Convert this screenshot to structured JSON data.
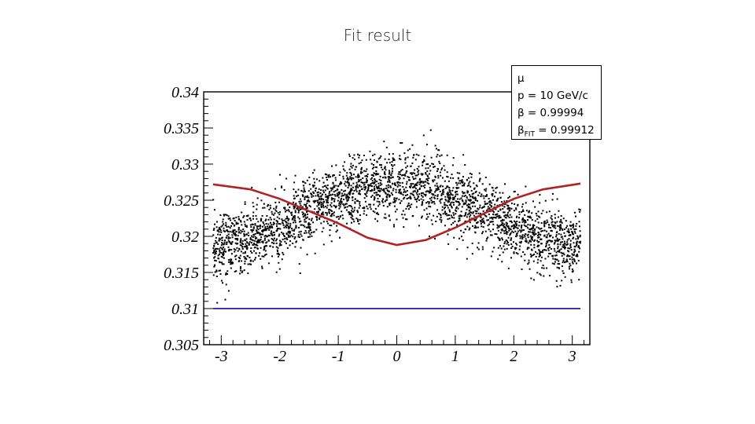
{
  "slide": {
    "title": "Fit result"
  },
  "legend": {
    "particle": "μ",
    "momentum": "p = 10 GeV/c",
    "beta": "β = 0.99994",
    "beta_fit_symbol": "β",
    "beta_fit_sub": "FIT",
    "beta_fit_value": " = 0.99912"
  },
  "colors": {
    "points": "#000000",
    "fit_curve": "#b22222",
    "reference_line": "#1a1aa8",
    "frame": "#000000"
  },
  "chart_data": {
    "type": "scatter",
    "xlim": [
      -3.3,
      3.3
    ],
    "ylim": [
      0.305,
      0.34
    ],
    "x_ticks": [
      -3,
      -2,
      -1,
      0,
      1,
      2,
      3
    ],
    "x_tick_labels": [
      "-3",
      "-2",
      "-1",
      "0",
      "1",
      "2",
      "3"
    ],
    "y_ticks": [
      0.305,
      0.31,
      0.315,
      0.32,
      0.325,
      0.33,
      0.335,
      0.34
    ],
    "y_tick_labels": [
      "0.305",
      "0.31",
      "0.315",
      "0.32",
      "0.325",
      "0.33",
      "0.335",
      "0.34"
    ],
    "grid": false,
    "fit_curve": {
      "x": [
        -3.14,
        -2.5,
        -2.0,
        -1.5,
        -1.0,
        -0.5,
        0.0,
        0.5,
        1.0,
        1.5,
        2.0,
        2.5,
        3.14
      ],
      "y": [
        0.3272,
        0.3265,
        0.3252,
        0.3235,
        0.3218,
        0.3198,
        0.3188,
        0.3195,
        0.3212,
        0.3232,
        0.3252,
        0.3265,
        0.3273
      ]
    },
    "reference_line": {
      "x": [
        -3.14,
        3.14
      ],
      "y": [
        0.31,
        0.31
      ]
    },
    "scatter_model": {
      "x_range": [
        -3.14,
        3.14
      ],
      "mean_center": 0.323,
      "amplitude": 0.0042,
      "spread": 0.0023,
      "count": 3000
    }
  }
}
